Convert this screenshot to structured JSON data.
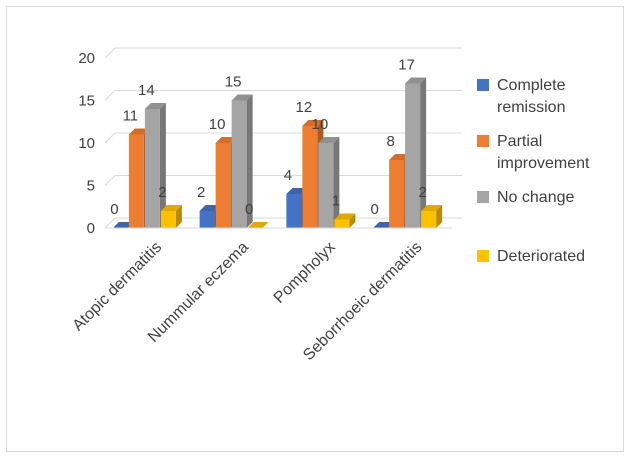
{
  "chart_data": {
    "type": "bar",
    "title": "",
    "xlabel": "",
    "ylabel": "",
    "ylim": [
      0,
      20
    ],
    "yticks": [
      0,
      5,
      10,
      15,
      20
    ],
    "grid": true,
    "legend_position": "right",
    "categories": [
      "Atopic dermatitis",
      "Nummular eczema",
      "Pompholyx",
      "Seborrhoeic dermatitis"
    ],
    "series": [
      {
        "name": "Complete remission",
        "values": [
          0,
          2,
          4,
          0
        ],
        "color": "#4472c4",
        "legend_lines": [
          "Complete",
          "remission"
        ]
      },
      {
        "name": "Partial improvement",
        "values": [
          11,
          10,
          12,
          8
        ],
        "color": "#ed7d31",
        "legend_lines": [
          "Partial",
          "improvement"
        ]
      },
      {
        "name": "No change",
        "values": [
          14,
          15,
          10,
          17
        ],
        "color": "#a5a5a5",
        "legend_lines": [
          "No change"
        ]
      },
      {
        "name": "Deteriorated",
        "values": [
          2,
          0,
          1,
          2
        ],
        "color": "#ffc000",
        "legend_lines": [
          "Deteriorated"
        ]
      }
    ]
  }
}
